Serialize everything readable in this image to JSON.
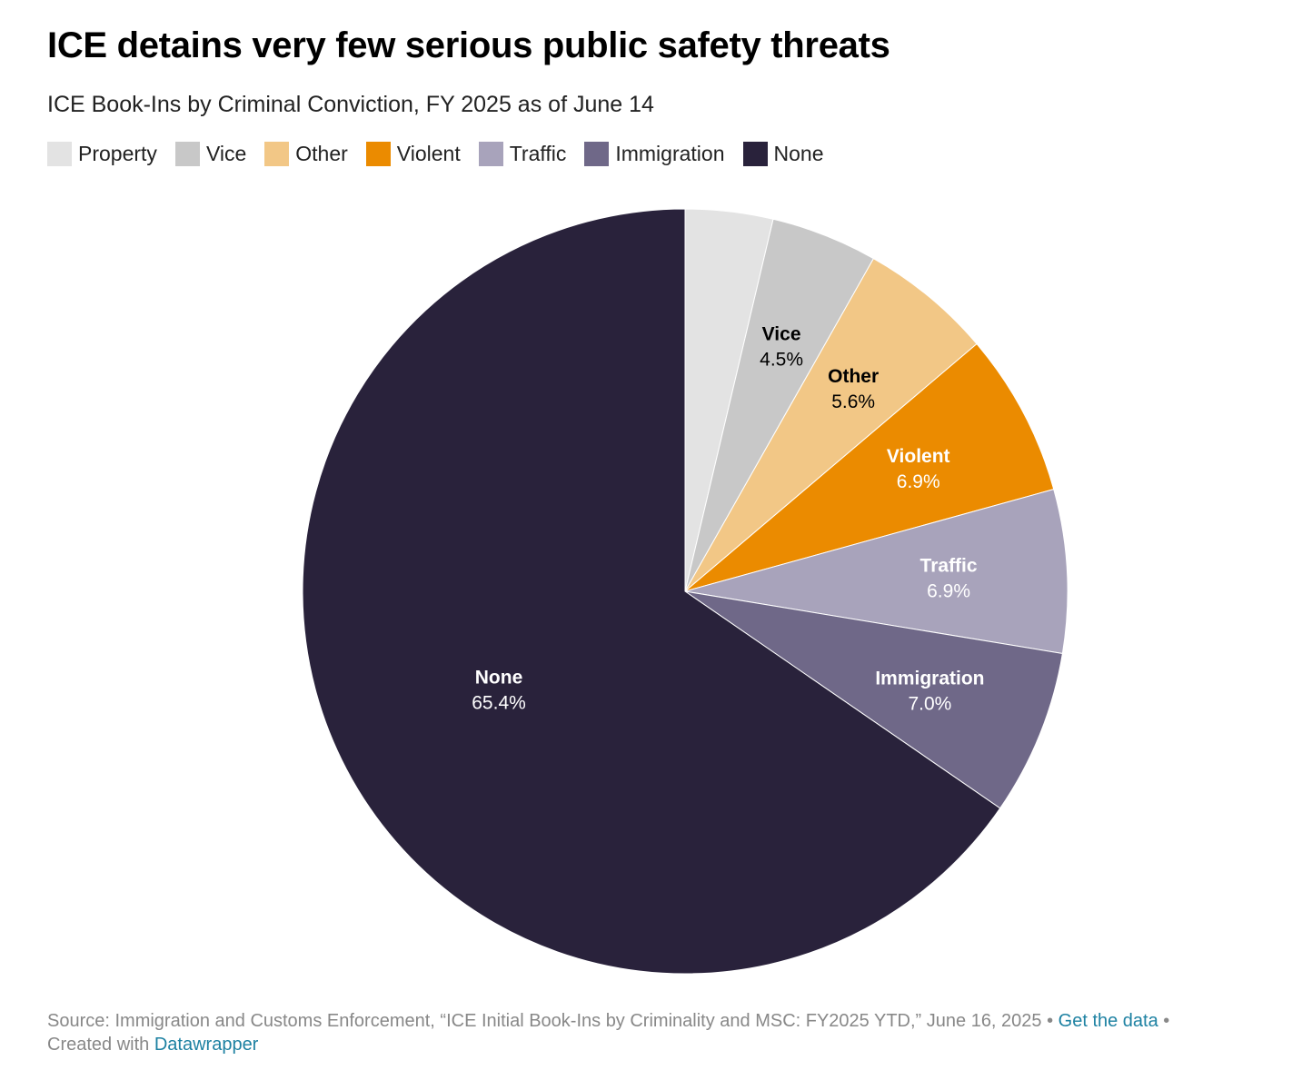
{
  "header": {
    "title": "ICE detains very few serious public safety threats",
    "subtitle": "ICE Book-Ins by Criminal Conviction, FY 2025 as of June 14"
  },
  "chart_data": {
    "type": "pie",
    "title": "ICE detains very few serious public safety threats",
    "subtitle": "ICE Book-Ins by Criminal Conviction, FY 2025 as of June 14",
    "legend_position": "top-left",
    "unit": "%",
    "slices": [
      {
        "name": "Property",
        "value": 3.7,
        "label": "",
        "color": "#e3e3e3",
        "label_color": "#000000"
      },
      {
        "name": "Vice",
        "value": 4.5,
        "label": "4.5%",
        "color": "#c8c8c8",
        "label_color": "#000000"
      },
      {
        "name": "Other",
        "value": 5.6,
        "label": "5.6%",
        "color": "#f2c786",
        "label_color": "#000000"
      },
      {
        "name": "Violent",
        "value": 6.9,
        "label": "6.9%",
        "color": "#eb8b00",
        "label_color": "#ffffff"
      },
      {
        "name": "Traffic",
        "value": 6.9,
        "label": "6.9%",
        "color": "#a8a3bb",
        "label_color": "#ffffff"
      },
      {
        "name": "Immigration",
        "value": 7.0,
        "label": "7.0%",
        "color": "#6f6888",
        "label_color": "#ffffff"
      },
      {
        "name": "None",
        "value": 65.4,
        "label": "65.4%",
        "color": "#29223b",
        "label_color": "#ffffff"
      }
    ]
  },
  "footer": {
    "source_text": "Source: Immigration and Customs Enforcement, “ICE Initial Book-Ins by Criminality and MSC: FY2025 YTD,” June 16, 2025 • ",
    "get_data_link": "Get the data",
    "separator": " •",
    "created_with": "Created with ",
    "datawrapper_link": "Datawrapper"
  }
}
